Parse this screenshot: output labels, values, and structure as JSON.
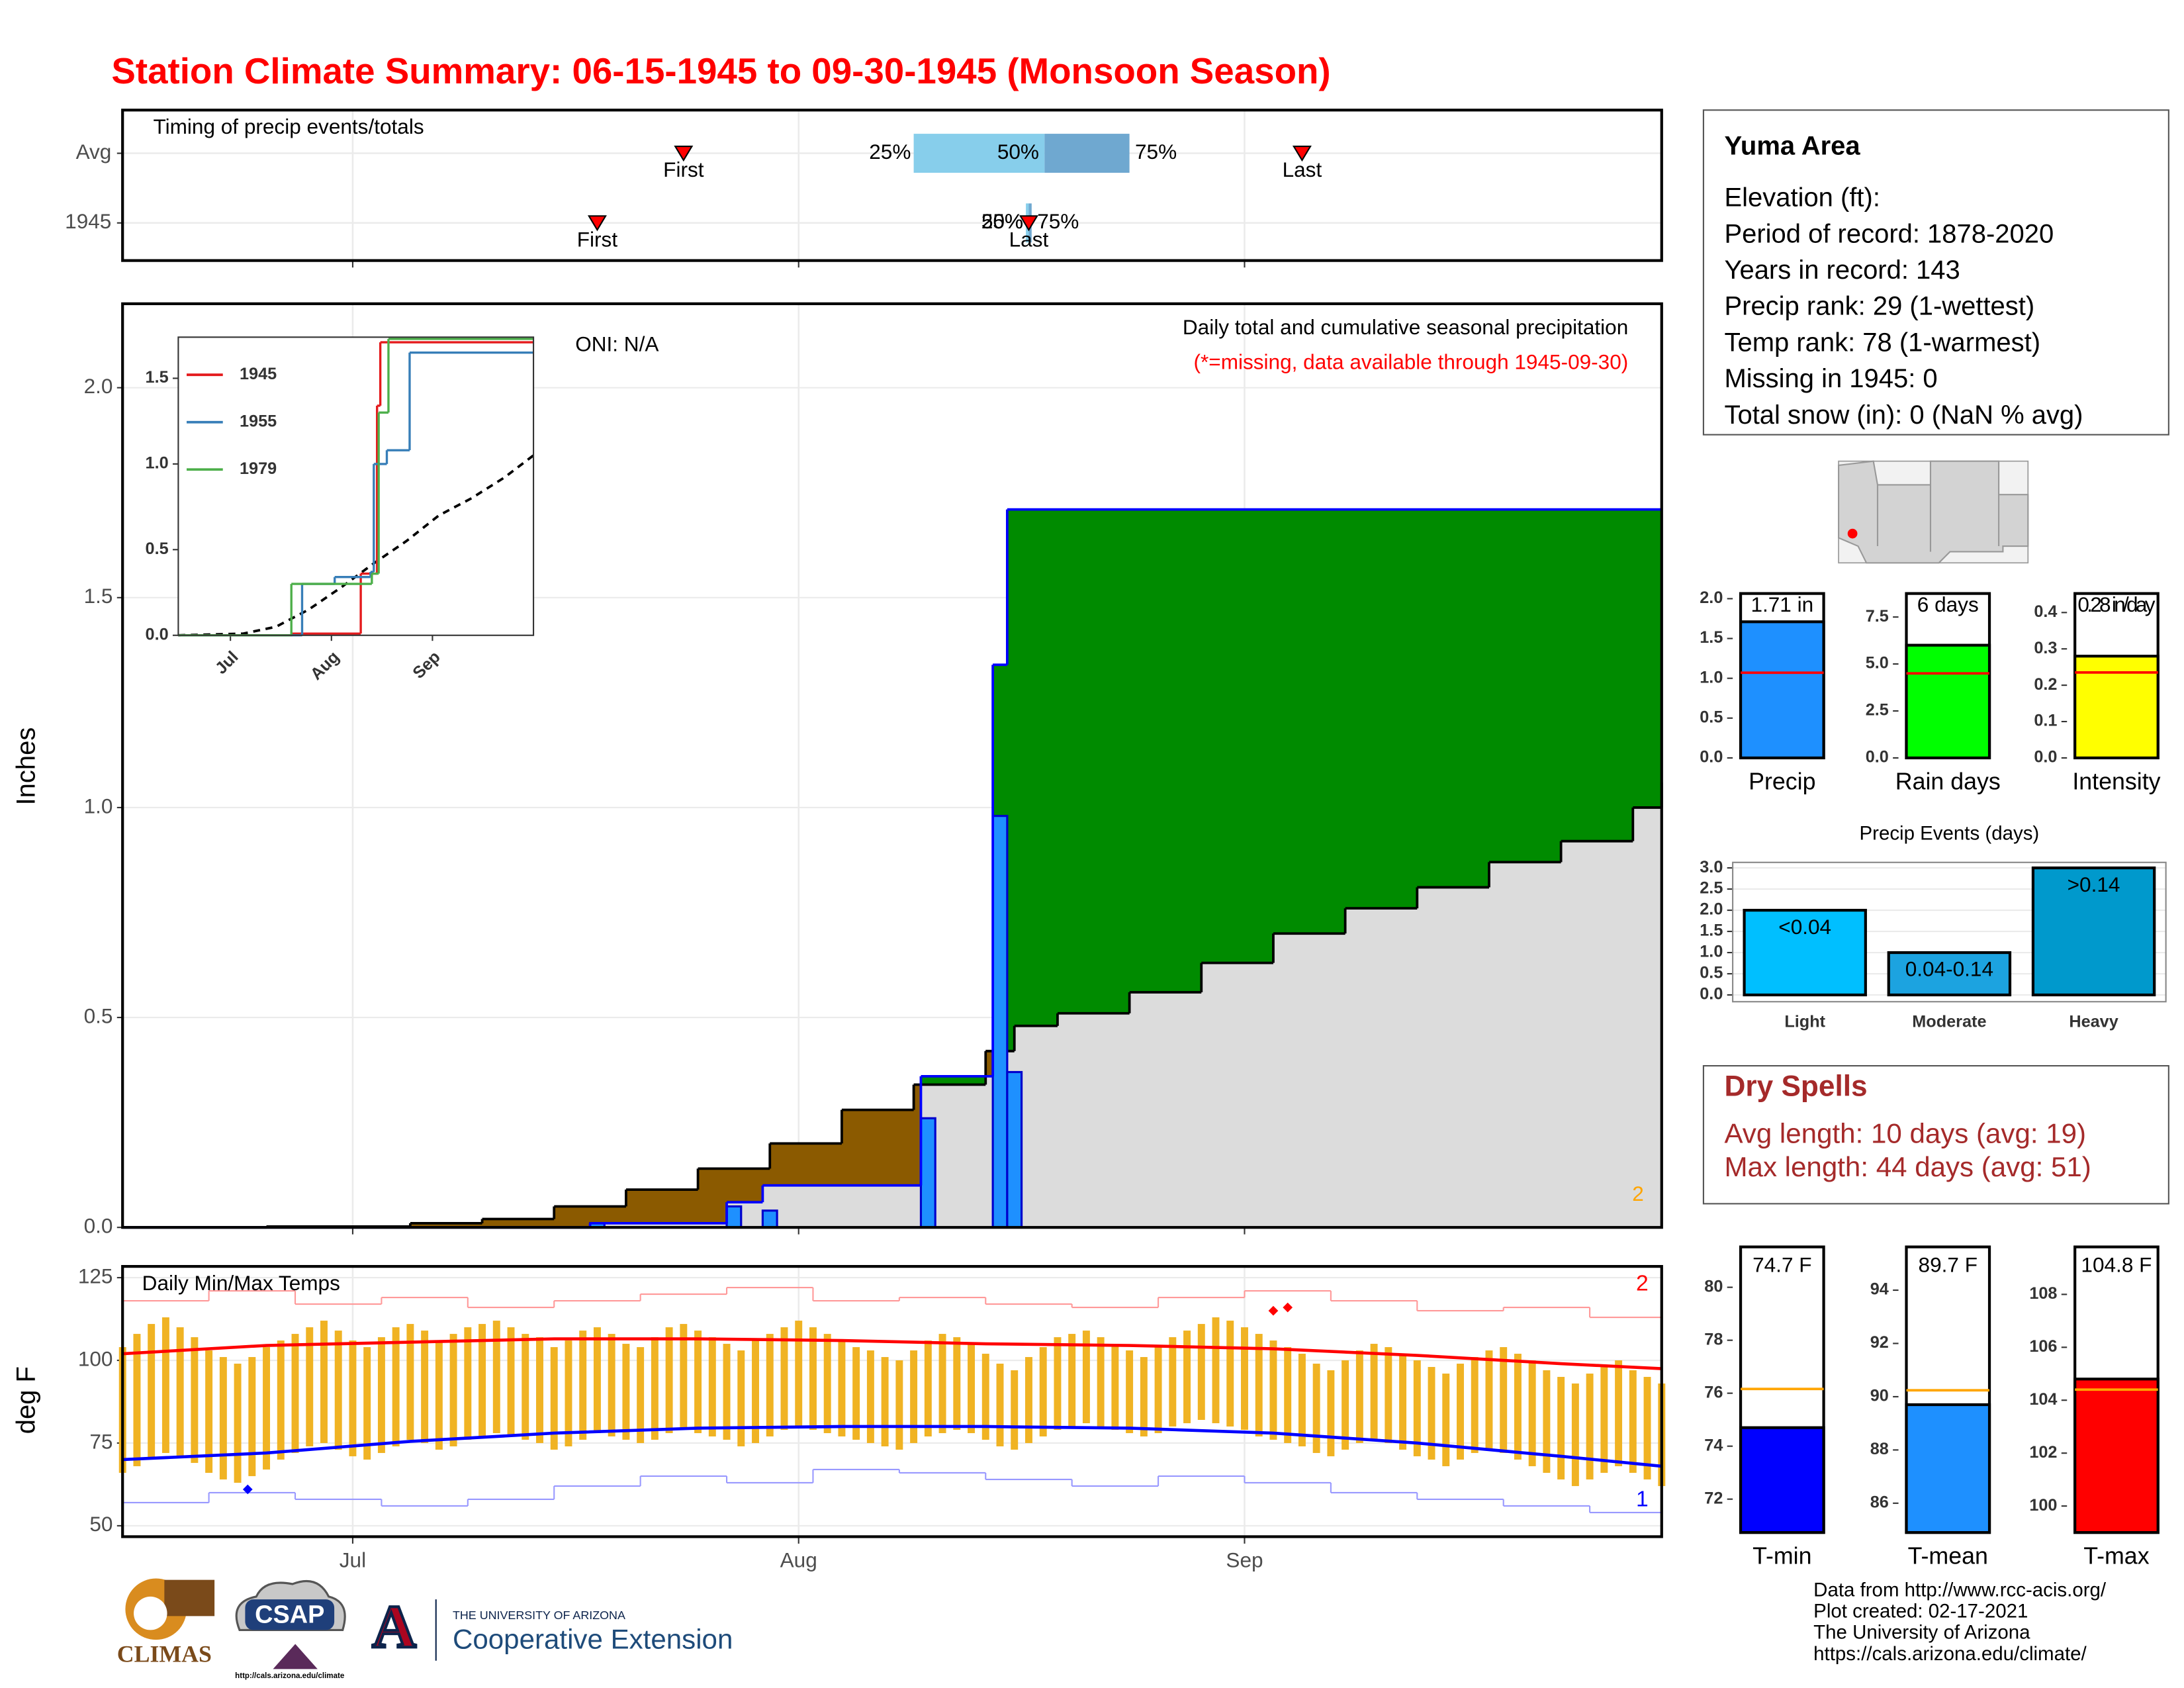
{
  "title": "Station Climate Summary: 06-15-1945 to 09-30-1945 (Monsoon Season)",
  "chart_data": [
    {
      "type": "timing",
      "title": "Timing of precip events/totals",
      "categories": [
        "Avg",
        "1945"
      ],
      "xlim": [
        0,
        107
      ],
      "xticks": [
        16,
        47,
        78
      ],
      "series": [
        {
          "name": "First",
          "color": "#ff0000",
          "values": [
            39,
            33
          ]
        },
        {
          "name": "Last",
          "color": "#ff0000",
          "values": [
            82,
            63
          ]
        }
      ],
      "quartiles": [
        {
          "name": "25%",
          "values": [
            55,
            62.8
          ]
        },
        {
          "name": "50%",
          "values": [
            64.1,
            63
          ]
        },
        {
          "name": "75%",
          "values": [
            70,
            63.2
          ]
        }
      ],
      "colors": [
        "#87ceeb",
        "#6fa8d0"
      ]
    },
    {
      "type": "precip",
      "ylabel": "Inches",
      "xlim": [
        0,
        107
      ],
      "xticks": [
        16,
        47,
        78
      ],
      "ylim": [
        0,
        2.2
      ],
      "yticks": [
        {
          "value": 0,
          "label": "0.0"
        },
        0.5,
        {
          "value": 1,
          "label": "1.0"
        },
        1.5,
        {
          "value": 2,
          "label": "2.0"
        }
      ],
      "daily": {
        "color": "#1e90ff",
        "x": [
          33,
          42.5,
          45,
          56,
          61,
          62
        ],
        "values": [
          0.01,
          0.05,
          0.04,
          0.26,
          0.98,
          0.37
        ]
      },
      "observed": {
        "color": "#0000ff",
        "x": [
          0,
          32.5,
          42,
          44.5,
          55.5,
          60.5,
          61.5
        ],
        "values": [
          0,
          0.01,
          0.06,
          0.1,
          0.36,
          1.34,
          1.71
        ]
      },
      "average": {
        "color": "#000000",
        "x": [
          0,
          10,
          20,
          25,
          30,
          35,
          40,
          45,
          50,
          55,
          60,
          62,
          65,
          70,
          75,
          80,
          85,
          90,
          95,
          100,
          105,
          107
        ],
        "values": [
          0,
          0.002,
          0.01,
          0.02,
          0.05,
          0.09,
          0.14,
          0.2,
          0.28,
          0.34,
          0.42,
          0.48,
          0.51,
          0.56,
          0.63,
          0.7,
          0.76,
          0.81,
          0.87,
          0.92,
          1.0,
          1.06
        ]
      },
      "area_colors": {
        "below": "#dcdcdc",
        "deficit": "#8b5a00",
        "surplus": "#008b00"
      },
      "annotations": [
        "ONI: N/A",
        "Daily total and cumulative seasonal precipitation",
        "(*=missing, data available through 1945-09-30)",
        "2"
      ]
    },
    {
      "type": "inset",
      "xlim": [
        0,
        109
      ],
      "xticks": [
        {
          "value": 16,
          "label": "Jul"
        },
        {
          "value": 47,
          "label": "Aug"
        },
        {
          "value": 78,
          "label": "Sep"
        }
      ],
      "ylim": [
        0,
        1.74
      ],
      "yticks": [
        {
          "value": 0,
          "label": "0.0"
        },
        0.5,
        {
          "value": 1,
          "label": "1.0"
        },
        1.5
      ],
      "series": [
        {
          "name": "1945",
          "color": "#e41a1c",
          "x": [
            0,
            35,
            56,
            61,
            62
          ],
          "values": [
            0,
            0.01,
            0.36,
            1.34,
            1.71
          ]
        },
        {
          "name": "1955",
          "color": "#377eb8",
          "x": [
            0,
            38,
            48,
            59,
            60,
            64,
            71
          ],
          "values": [
            0,
            0.3,
            0.34,
            0.37,
            1.0,
            1.08,
            1.65
          ]
        },
        {
          "name": "1979",
          "color": "#4daf4a",
          "x": [
            0,
            34.7,
            59.4,
            61.5,
            64.5
          ],
          "values": [
            0,
            0.3,
            0.36,
            1.3,
            1.73
          ]
        }
      ],
      "average": {
        "color": "#000000",
        "x": [
          0,
          20,
          30,
          40,
          50,
          60,
          70,
          80,
          90,
          100,
          109
        ],
        "values": [
          0,
          0.01,
          0.05,
          0.15,
          0.28,
          0.42,
          0.55,
          0.7,
          0.8,
          0.92,
          1.05
        ]
      }
    },
    {
      "type": "temp",
      "title": "Daily Min/Max Temps",
      "ylabel": "deg F",
      "xlim": [
        0,
        107
      ],
      "xticks": [
        {
          "value": 16,
          "label": "Jul"
        },
        {
          "value": 47,
          "label": "Aug"
        },
        {
          "value": 78,
          "label": "Sep"
        }
      ],
      "ylim": [
        46.7,
        128.4
      ],
      "yticks": [
        50,
        75,
        100,
        125
      ],
      "bar_color": "#f0b323",
      "x": [
        0,
        1,
        2,
        3,
        4,
        5,
        6,
        7,
        8,
        9,
        10,
        11,
        12,
        13,
        14,
        15,
        16,
        17,
        18,
        19,
        20,
        21,
        22,
        23,
        24,
        25,
        26,
        27,
        28,
        29,
        30,
        31,
        32,
        33,
        34,
        35,
        36,
        37,
        38,
        39,
        40,
        41,
        42,
        43,
        44,
        45,
        46,
        47,
        48,
        49,
        50,
        51,
        52,
        53,
        54,
        55,
        56,
        57,
        58,
        59,
        60,
        61,
        62,
        63,
        64,
        65,
        66,
        67,
        68,
        69,
        70,
        71,
        72,
        73,
        74,
        75,
        76,
        77,
        78,
        79,
        80,
        81,
        82,
        83,
        84,
        85,
        86,
        87,
        88,
        89,
        90,
        91,
        92,
        93,
        94,
        95,
        96,
        97,
        98,
        99,
        100,
        101,
        102,
        103,
        104,
        105,
        106,
        107
      ],
      "tmax": [
        104,
        108,
        111,
        113,
        110,
        107,
        103,
        101,
        99,
        101,
        104,
        106,
        108,
        110,
        112,
        109,
        106,
        104,
        107,
        110,
        111,
        109,
        106,
        108,
        110,
        111,
        112,
        110,
        108,
        107,
        104,
        106,
        109,
        110,
        108,
        105,
        104,
        107,
        110,
        111,
        109,
        107,
        105,
        103,
        106,
        108,
        110,
        112,
        110,
        108,
        106,
        104,
        103,
        101,
        100,
        103,
        106,
        108,
        107,
        105,
        102,
        99,
        97,
        101,
        104,
        107,
        108,
        109,
        107,
        105,
        103,
        101,
        104,
        107,
        109,
        111,
        113,
        112,
        110,
        108,
        106,
        104,
        102,
        99,
        97,
        100,
        103,
        105,
        104,
        102,
        100,
        98,
        96,
        99,
        101,
        103,
        104,
        102,
        100,
        97,
        95,
        93,
        96,
        98,
        100,
        97,
        95,
        93
      ],
      "tmin": [
        66,
        68,
        70,
        72,
        71,
        69,
        66,
        64,
        63,
        65,
        67,
        70,
        72,
        74,
        75,
        73,
        71,
        70,
        72,
        74,
        76,
        75,
        73,
        74,
        76,
        77,
        78,
        77,
        76,
        75,
        73,
        74,
        76,
        78,
        77,
        76,
        75,
        76,
        78,
        79,
        78,
        77,
        76,
        74,
        75,
        77,
        79,
        80,
        79,
        78,
        77,
        76,
        75,
        74,
        73,
        75,
        77,
        78,
        79,
        78,
        76,
        74,
        73,
        75,
        77,
        79,
        80,
        81,
        80,
        79,
        78,
        77,
        78,
        80,
        81,
        82,
        81,
        80,
        79,
        77,
        76,
        75,
        74,
        72,
        71,
        73,
        75,
        76,
        75,
        73,
        71,
        70,
        68,
        70,
        72,
        73,
        72,
        70,
        68,
        66,
        64,
        62,
        64,
        66,
        68,
        66,
        64,
        62
      ],
      "avg_max": {
        "color": "#ff0000",
        "x": [
          0,
          10,
          20,
          30,
          40,
          50,
          60,
          70,
          80,
          90,
          100,
          107
        ],
        "values": [
          102,
          104.5,
          105.5,
          106.5,
          106.5,
          106,
          105,
          104.5,
          103.5,
          101.5,
          99,
          97.5
        ]
      },
      "avg_min": {
        "color": "#0000ff",
        "x": [
          0,
          10,
          20,
          30,
          40,
          50,
          60,
          70,
          80,
          90,
          100,
          107
        ],
        "values": [
          70,
          72,
          75.5,
          78,
          79.5,
          80,
          80,
          79.5,
          78,
          75,
          71,
          68
        ]
      },
      "record_high": {
        "color": "#ff9999",
        "x": [
          0,
          6,
          12,
          18,
          24,
          30,
          36,
          42,
          48,
          54,
          60,
          66,
          72,
          78,
          84,
          90,
          96,
          102
        ],
        "values": [
          118,
          121,
          117,
          119,
          116,
          118,
          120,
          122,
          118,
          119,
          117,
          116,
          119,
          121,
          118,
          115,
          116,
          113
        ]
      },
      "record_low": {
        "color": "#9999ff",
        "x": [
          0,
          6,
          12,
          18,
          24,
          30,
          36,
          42,
          48,
          54,
          60,
          66,
          72,
          78,
          84,
          90,
          96,
          102
        ],
        "values": [
          57,
          60,
          58,
          56,
          58,
          62,
          65,
          63,
          67,
          66,
          64,
          62,
          65,
          63,
          60,
          58,
          56,
          54
        ]
      },
      "new_highs": {
        "color": "#ff0000",
        "x": [
          80,
          81
        ],
        "values": [
          115,
          116
        ]
      },
      "new_lows": {
        "color": "#0000ff",
        "x": [
          8.7
        ],
        "values": [
          61
        ]
      },
      "annotations": [
        "2",
        "1"
      ]
    },
    {
      "type": "bar",
      "categories": [
        "Precip"
      ],
      "values": [
        1.71
      ],
      "value_labels": [
        "1.71 in"
      ],
      "color": "#1e90ff",
      "average": 1.07,
      "average_color": "#ff0000",
      "ylim": [
        0,
        2.1
      ],
      "yticks": [
        {
          "value": 0,
          "label": "0.0"
        },
        0.5,
        {
          "value": 1,
          "label": "1.0"
        },
        1.5,
        {
          "value": 2,
          "label": "2.0"
        }
      ]
    },
    {
      "type": "bar",
      "categories": [
        "Rain days"
      ],
      "values": [
        6
      ],
      "value_labels": [
        "6 days"
      ],
      "color": "#00ff00",
      "average": 4.5,
      "average_color": "#ff0000",
      "ylim": [
        0,
        8.9
      ],
      "yticks": [
        {
          "value": 0,
          "label": "0.0"
        },
        2.5,
        {
          "value": 5,
          "label": "5.0"
        },
        7.5
      ]
    },
    {
      "type": "bar",
      "categories": [
        "Intensity"
      ],
      "values": [
        0.28
      ],
      "value_labels": [
        "0.28 in/day"
      ],
      "color": "#ffff00",
      "average": 0.235,
      "average_color": "#ff0000",
      "ylim": [
        0,
        0.46
      ],
      "yticks": [
        {
          "value": 0,
          "label": "0.0"
        },
        0.1,
        0.2,
        0.3,
        0.4
      ]
    },
    {
      "type": "bar",
      "title": "Precip Events (days)",
      "categories": [
        "Light",
        "Moderate",
        "Heavy"
      ],
      "values": [
        2,
        1,
        3
      ],
      "bar_labels": [
        "<0.04",
        "0.04-0.14",
        ">0.14"
      ],
      "colors": [
        "#00bfff",
        "#1ca3e0",
        "#0099cc"
      ],
      "grid": true,
      "ylim": [
        -0.16,
        3.13
      ],
      "yticks": [
        {
          "value": 0,
          "label": "0.0"
        },
        0.5,
        {
          "value": 1,
          "label": "1.0"
        },
        1.5,
        {
          "value": 2,
          "label": "2.0"
        },
        2.5,
        {
          "value": 3,
          "label": "3.0"
        }
      ]
    },
    {
      "type": "bar",
      "categories": [
        "T-min"
      ],
      "values": [
        74.7
      ],
      "value_labels": [
        "74.7 F"
      ],
      "color": "#0000ff",
      "average": 76.16,
      "average_color": "#ffa500",
      "ylim": [
        70.74,
        81.63
      ],
      "yticks": [
        72,
        74,
        76,
        78,
        80
      ]
    },
    {
      "type": "bar",
      "categories": [
        "T-mean"
      ],
      "values": [
        89.7
      ],
      "value_labels": [
        "89.7 F"
      ],
      "color": "#1e90ff",
      "average": 90.24,
      "average_color": "#ffa500",
      "ylim": [
        84.9,
        95.73
      ],
      "yticks": [
        86,
        88,
        90,
        92,
        94
      ]
    },
    {
      "type": "bar",
      "categories": [
        "T-max"
      ],
      "values": [
        104.8
      ],
      "value_labels": [
        "104.8 F"
      ],
      "color": "#ff0000",
      "average": 104.4,
      "average_color": "#ffa500",
      "ylim": [
        99,
        109.9
      ],
      "yticks": [
        100,
        102,
        104,
        106,
        108
      ]
    }
  ],
  "info": {
    "title": "Yuma Area",
    "lines": [
      "Elevation (ft):",
      "Period of record: 1878-2020",
      "Years in record: 143",
      "Precip rank: 29 (1-wettest)",
      "Temp rank: 78 (1-warmest)",
      "Missing in 1945: 0",
      "Total snow (in): 0 (NaN % avg)"
    ]
  },
  "dry_spells": {
    "title": "Dry Spells",
    "lines": [
      "Avg length: 10 days (avg: 19)",
      "Max length: 44 days (avg: 51)"
    ]
  },
  "footer": [
    "Data from http://www.rcc-acis.org/",
    "Plot created: 02-17-2021",
    "The University of Arizona",
    "https://cals.arizona.edu/climate/"
  ],
  "logos": {
    "climas": "CLIMAS",
    "csap": "CSAP",
    "csap_url": "http://cals.arizona.edu/climate",
    "university": "THE UNIVERSITY OF ARIZONA",
    "extension": "Cooperative Extension"
  }
}
